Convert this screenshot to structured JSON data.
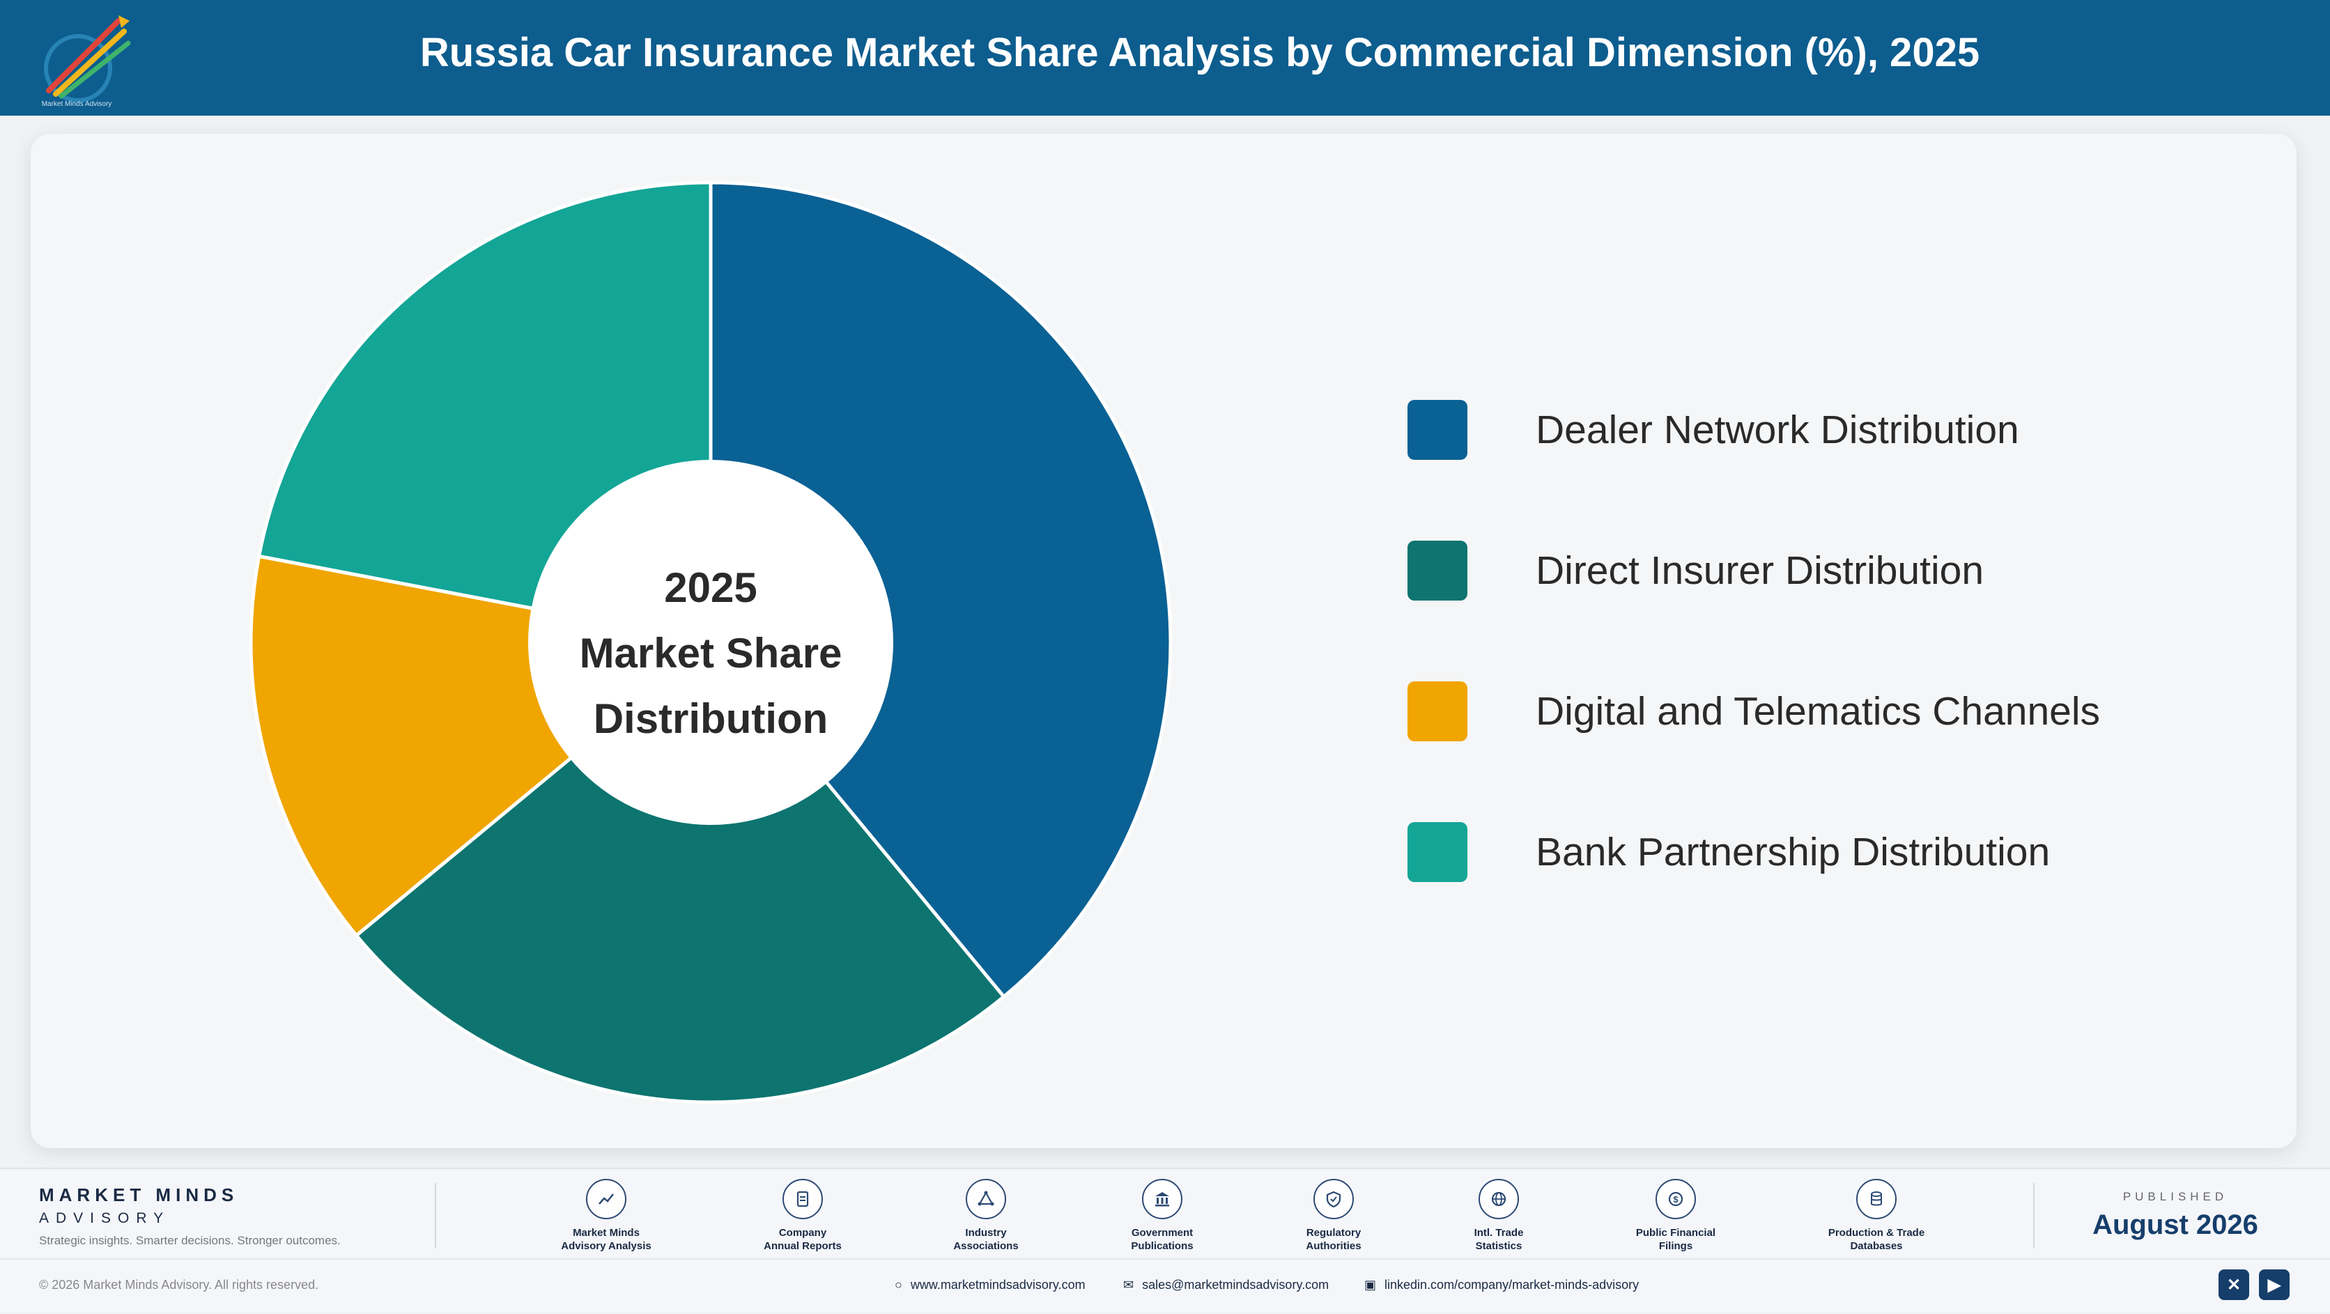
{
  "header": {
    "title": "Russia Car Insurance Market Share Analysis by Commercial Dimension (%), 2025"
  },
  "chart_data": {
    "type": "pie",
    "categories": [
      "Dealer Network Distribution",
      "Direct Insurer Distribution",
      "Digital and Telematics Channels",
      "Bank Partnership Distribution"
    ],
    "values": [
      39,
      25,
      14,
      22
    ],
    "unit": "%",
    "colors": [
      "#0a6194",
      "#0d7470",
      "#f0a500",
      "#13a596"
    ],
    "center_label": [
      "2025",
      "Market Share",
      "Distribution"
    ],
    "legend_position": "right"
  },
  "footer": {
    "brand_name": "MARKET MINDS",
    "brand_sub": "ADVISORY",
    "tagline": "Strategic insights. Smarter decisions. Stronger outcomes.",
    "sources": [
      {
        "line1": "Market Minds",
        "line2": "Advisory Analysis",
        "icon": "trend-line-icon"
      },
      {
        "line1": "Company",
        "line2": "Annual Reports",
        "icon": "document-icon"
      },
      {
        "line1": "Industry",
        "line2": "Associations",
        "icon": "network-icon"
      },
      {
        "line1": "Government",
        "line2": "Publications",
        "icon": "government-building-icon"
      },
      {
        "line1": "Regulatory",
        "line2": "Authorities",
        "icon": "shield-icon"
      },
      {
        "line1": "Intl. Trade",
        "line2": "Statistics",
        "icon": "globe-icon"
      },
      {
        "line1": "Public Financial",
        "line2": "Filings",
        "icon": "coin-icon"
      },
      {
        "line1": "Production & Trade",
        "line2": "Databases",
        "icon": "database-icon"
      }
    ],
    "published_label": "PUBLISHED",
    "published_date": "August 2026",
    "copyright": "© 2026 Market Minds Advisory. All rights reserved.",
    "website": "www.marketmindsadvisory.com",
    "email": "sales@marketmindsadvisory.com",
    "linkedin": "linkedin.com/company/market-minds-advisory",
    "social": [
      "x-icon",
      "youtube-icon"
    ]
  }
}
